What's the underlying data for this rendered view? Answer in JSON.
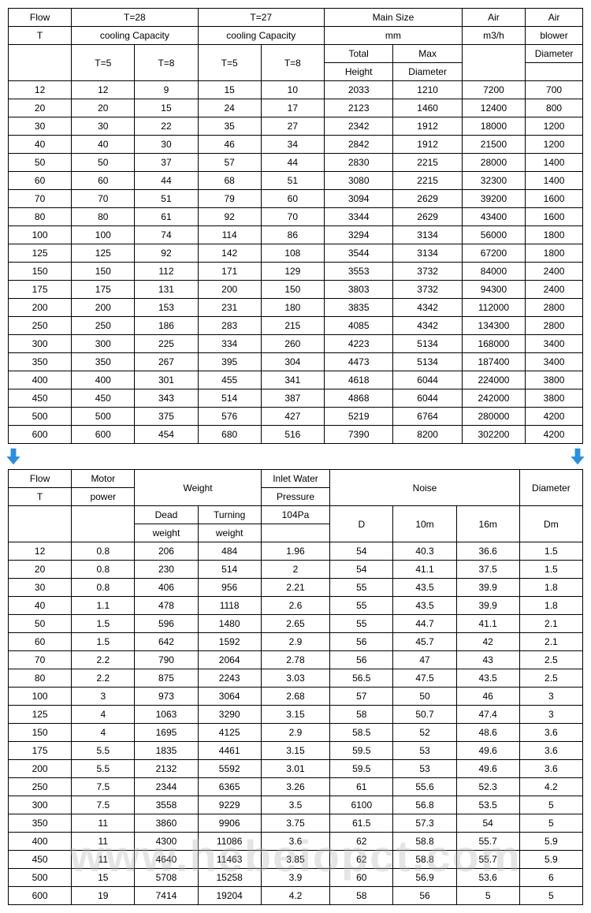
{
  "table1": {
    "header1": [
      "Flow",
      "T=28",
      "T=27",
      "Main Size",
      "Air",
      "Air"
    ],
    "header2": [
      "T",
      "cooling Capacity",
      "cooling Capacity",
      "mm",
      "m3/h",
      "blower"
    ],
    "header3_col1": "T=5",
    "header3_col2": "T=8",
    "header3_col3": "T=5",
    "header3_col4": "T=8",
    "header3_col5": "Total",
    "header3_col6": "Max",
    "header3_col8": "Diameter",
    "header4_col5": "Height",
    "header4_col6": "Diameter",
    "rows": [
      [
        "12",
        "12",
        "9",
        "15",
        "10",
        "2033",
        "1210",
        "7200",
        "700"
      ],
      [
        "20",
        "20",
        "15",
        "24",
        "17",
        "2123",
        "1460",
        "12400",
        "800"
      ],
      [
        "30",
        "30",
        "22",
        "35",
        "27",
        "2342",
        "1912",
        "18000",
        "1200"
      ],
      [
        "40",
        "40",
        "30",
        "46",
        "34",
        "2842",
        "1912",
        "21500",
        "1200"
      ],
      [
        "50",
        "50",
        "37",
        "57",
        "44",
        "2830",
        "2215",
        "28000",
        "1400"
      ],
      [
        "60",
        "60",
        "44",
        "68",
        "51",
        "3080",
        "2215",
        "32300",
        "1400"
      ],
      [
        "70",
        "70",
        "51",
        "79",
        "60",
        "3094",
        "2629",
        "39200",
        "1600"
      ],
      [
        "80",
        "80",
        "61",
        "92",
        "70",
        "3344",
        "2629",
        "43400",
        "1600"
      ],
      [
        "100",
        "100",
        "74",
        "114",
        "86",
        "3294",
        "3134",
        "56000",
        "1800"
      ],
      [
        "125",
        "125",
        "92",
        "142",
        "108",
        "3544",
        "3134",
        "67200",
        "1800"
      ],
      [
        "150",
        "150",
        "112",
        "171",
        "129",
        "3553",
        "3732",
        "84000",
        "2400"
      ],
      [
        "175",
        "175",
        "131",
        "200",
        "150",
        "3803",
        "3732",
        "94300",
        "2400"
      ],
      [
        "200",
        "200",
        "153",
        "231",
        "180",
        "3835",
        "4342",
        "112000",
        "2800"
      ],
      [
        "250",
        "250",
        "186",
        "283",
        "215",
        "4085",
        "4342",
        "134300",
        "2800"
      ],
      [
        "300",
        "300",
        "225",
        "334",
        "260",
        "4223",
        "5134",
        "168000",
        "3400"
      ],
      [
        "350",
        "350",
        "267",
        "395",
        "304",
        "4473",
        "5134",
        "187400",
        "3400"
      ],
      [
        "400",
        "400",
        "301",
        "455",
        "341",
        "4618",
        "6044",
        "224000",
        "3800"
      ],
      [
        "450",
        "450",
        "343",
        "514",
        "387",
        "4868",
        "6044",
        "242000",
        "3800"
      ],
      [
        "500",
        "500",
        "375",
        "576",
        "427",
        "5219",
        "6764",
        "280000",
        "4200"
      ],
      [
        "600",
        "600",
        "454",
        "680",
        "516",
        "7390",
        "8200",
        "302200",
        "4200"
      ]
    ]
  },
  "table2": {
    "header1": [
      "Flow",
      "Motor",
      "Weight",
      "Inlet Water",
      "Noise",
      "Diameter"
    ],
    "header2_col1": "T",
    "header2_col2": "power",
    "header2_col4": "Pressure",
    "header3_col3a": "Dead",
    "header3_col3b": "Turning",
    "header3_col4": "104Pa",
    "header3_col5": "D",
    "header3_col6": "10m",
    "header3_col7": "16m",
    "header3_col8": "Dm",
    "header4_col3a": "weight",
    "header4_col3b": "weight",
    "rows": [
      [
        "12",
        "0.8",
        "206",
        "484",
        "1.96",
        "54",
        "40.3",
        "36.6",
        "1.5"
      ],
      [
        "20",
        "0.8",
        "230",
        "514",
        "2",
        "54",
        "41.1",
        "37.5",
        "1.5"
      ],
      [
        "30",
        "0.8",
        "406",
        "956",
        "2.21",
        "55",
        "43.5",
        "39.9",
        "1.8"
      ],
      [
        "40",
        "1.1",
        "478",
        "1118",
        "2.6",
        "55",
        "43.5",
        "39.9",
        "1.8"
      ],
      [
        "50",
        "1.5",
        "596",
        "1480",
        "2.65",
        "55",
        "44.7",
        "41.1",
        "2.1"
      ],
      [
        "60",
        "1.5",
        "642",
        "1592",
        "2.9",
        "56",
        "45.7",
        "42",
        "2.1"
      ],
      [
        "70",
        "2.2",
        "790",
        "2064",
        "2.78",
        "56",
        "47",
        "43",
        "2.5"
      ],
      [
        "80",
        "2.2",
        "875",
        "2243",
        "3.03",
        "56.5",
        "47.5",
        "43.5",
        "2.5"
      ],
      [
        "100",
        "3",
        "973",
        "3064",
        "2.68",
        "57",
        "50",
        "46",
        "3"
      ],
      [
        "125",
        "4",
        "1063",
        "3290",
        "3.15",
        "58",
        "50.7",
        "47.4",
        "3"
      ],
      [
        "150",
        "4",
        "1695",
        "4125",
        "2.9",
        "58.5",
        "52",
        "48.6",
        "3.6"
      ],
      [
        "175",
        "5.5",
        "1835",
        "4461",
        "3.15",
        "59.5",
        "53",
        "49.6",
        "3.6"
      ],
      [
        "200",
        "5.5",
        "2132",
        "5592",
        "3.01",
        "59.5",
        "53",
        "49.6",
        "3.6"
      ],
      [
        "250",
        "7.5",
        "2344",
        "6365",
        "3.26",
        "61",
        "55.6",
        "52.3",
        "4.2"
      ],
      [
        "300",
        "7.5",
        "3558",
        "9229",
        "3.5",
        "6100",
        "56.8",
        "53.5",
        "5"
      ],
      [
        "350",
        "11",
        "3860",
        "9906",
        "3.75",
        "61.5",
        "57.3",
        "54",
        "5"
      ],
      [
        "400",
        "11",
        "4300",
        "11086",
        "3.6",
        "62",
        "58.8",
        "55.7",
        "5.9"
      ],
      [
        "450",
        "11",
        "4640",
        "11463",
        "3.85",
        "62",
        "58.8",
        "55.7",
        "5.9"
      ],
      [
        "500",
        "15",
        "5708",
        "15258",
        "3.9",
        "60",
        "56.9",
        "53.6",
        "6"
      ],
      [
        "600",
        "19",
        "7414",
        "19204",
        "4.2",
        "58",
        "56",
        "5",
        "5"
      ]
    ]
  },
  "arrow_color": "#2d8fdb",
  "watermark_text": "www.hebeiopct.com"
}
